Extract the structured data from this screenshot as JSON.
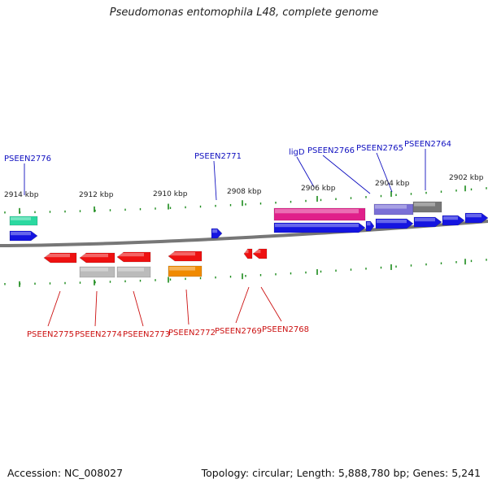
{
  "title": "Pseudomonas entomophila L48, complete genome",
  "footer": {
    "accession": "Accession: NC_008027",
    "summary": "Topology: circular; Length: 5,888,780 bp; Genes: 5,241"
  },
  "colors": {
    "backbone": "#777777",
    "tick": "#1a8a1a",
    "forward_label": "#1010c0",
    "reverse_label": "#cc1111",
    "forward_cds": "#1515e0",
    "reverse_cds": "#ee1111",
    "green_feature": "#2bd9a0",
    "magenta_feature": "#e0208a",
    "purple_feature": "#7a6fd6",
    "gray_feature": "#777777",
    "light_gray_feature": "#bbbbbb",
    "orange_feature": "#f08a00"
  },
  "axis": {
    "ticks": [
      {
        "label": "2914 kbp"
      },
      {
        "label": "2912 kbp"
      },
      {
        "label": "2910 kbp"
      },
      {
        "label": "2908 kbp"
      },
      {
        "label": "2906 kbp"
      },
      {
        "label": "2904 kbp"
      },
      {
        "label": "2902 kbp"
      }
    ]
  },
  "forward_labels": [
    {
      "name": "PSEEN2776"
    },
    {
      "name": "PSEEN2771"
    },
    {
      "name": "ligD"
    },
    {
      "name": "PSEEN2766"
    },
    {
      "name": "PSEEN2765"
    },
    {
      "name": "PSEEN2764"
    }
  ],
  "reverse_labels": [
    {
      "name": "PSEEN2775"
    },
    {
      "name": "PSEEN2774"
    },
    {
      "name": "PSEEN2773"
    },
    {
      "name": "PSEEN2772"
    },
    {
      "name": "PSEEN2769"
    },
    {
      "name": "PSEEN2768"
    }
  ]
}
